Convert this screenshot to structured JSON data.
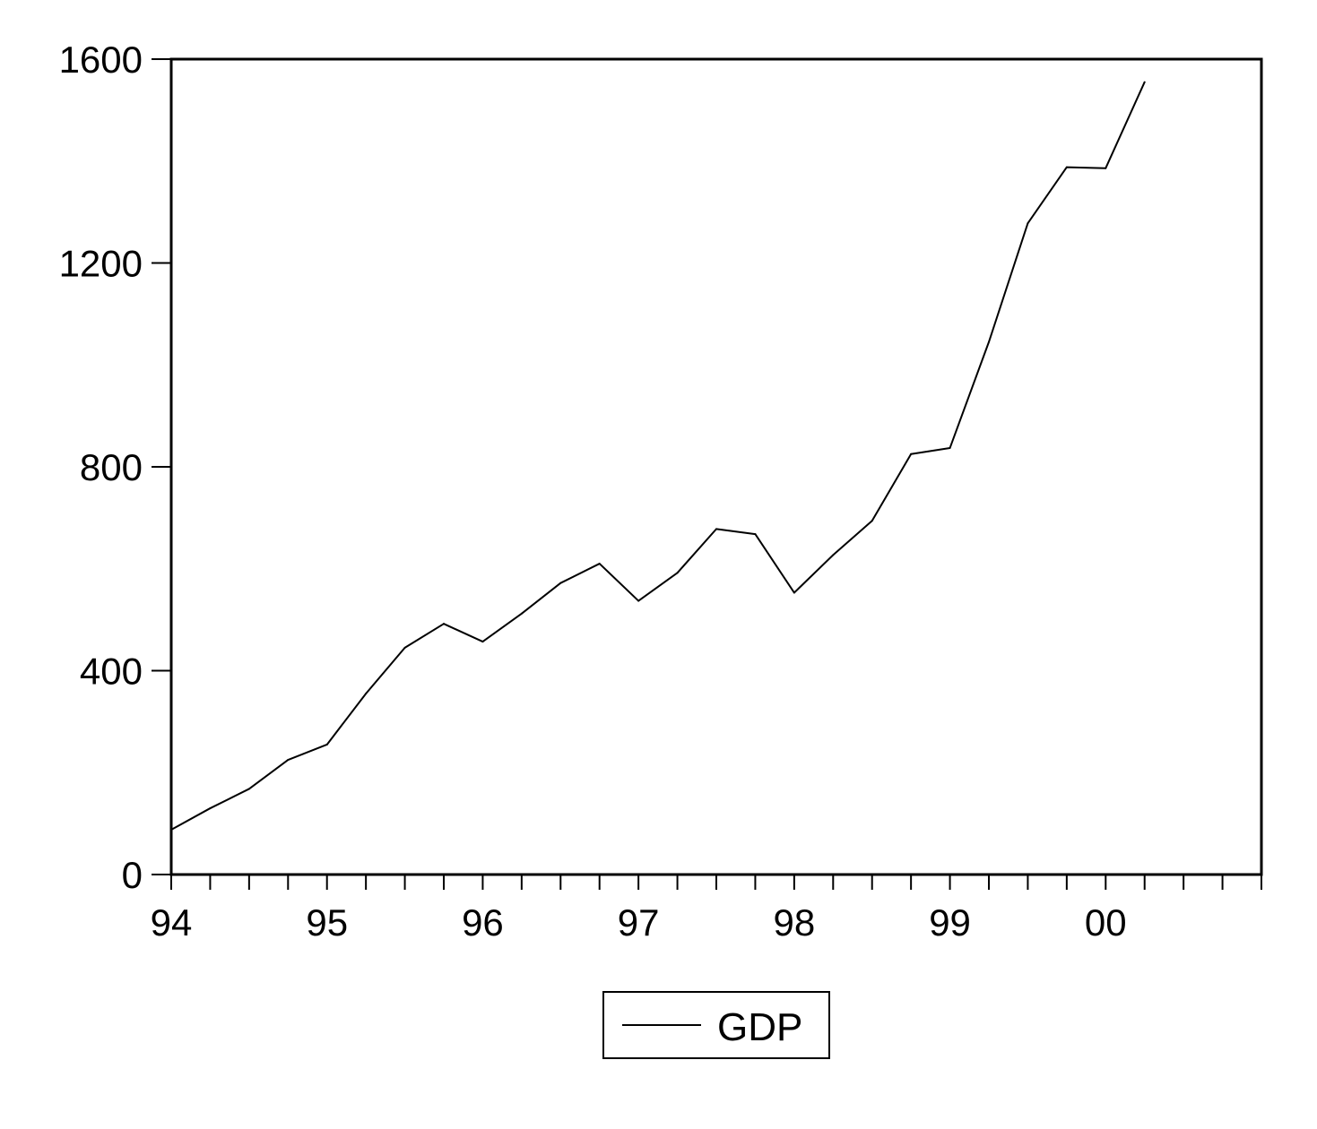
{
  "chart_data": {
    "type": "line",
    "x": [
      "1994Q1",
      "1994Q2",
      "1994Q3",
      "1994Q4",
      "1995Q1",
      "1995Q2",
      "1995Q3",
      "1995Q4",
      "1996Q1",
      "1996Q2",
      "1996Q3",
      "1996Q4",
      "1997Q1",
      "1997Q2",
      "1997Q3",
      "1997Q4",
      "1998Q1",
      "1998Q2",
      "1998Q3",
      "1998Q4",
      "1999Q1",
      "1999Q2",
      "1999Q3",
      "1999Q4",
      "2000Q1",
      "2000Q2"
    ],
    "series": [
      {
        "name": "GDP",
        "color": "#000000",
        "values": [
          88,
          130,
          168,
          225,
          255,
          355,
          445,
          492,
          457,
          512,
          572,
          610,
          537,
          592,
          678,
          668,
          553,
          627,
          694,
          825,
          837,
          1045,
          1278,
          1388,
          1386,
          1555
        ]
      }
    ],
    "x_ticks": [
      "94",
      "95",
      "96",
      "97",
      "98",
      "99",
      "00"
    ],
    "y_ticks": [
      0,
      400,
      800,
      1200,
      1600
    ],
    "ylim": [
      0,
      1600
    ],
    "xlim": [
      "1994Q1",
      "2000Q4"
    ],
    "grid": false,
    "legend_position": "bottom-center"
  }
}
